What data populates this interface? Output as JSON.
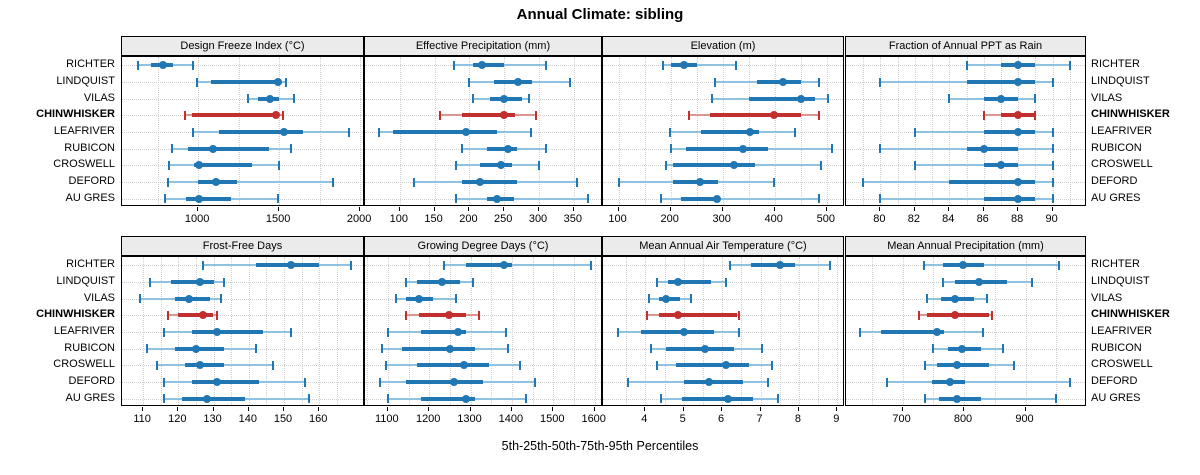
{
  "title": "Annual Climate: sibling",
  "caption": "5th-25th-50th-75th-95th Percentiles",
  "stations": [
    "RICHTER",
    "LINDQUIST",
    "VILAS",
    "CHINWHISKER",
    "LEAFRIVER",
    "RUBICON",
    "CROSWELL",
    "DEFORD",
    "AU GRES"
  ],
  "highlight_station": "CHINWHISKER",
  "colors": {
    "bar_blue": "#2077b4",
    "bar_blue_light": "#8fc2e0",
    "bar_red": "#c22f2f",
    "bar_red_light": "#dd9590",
    "strip_bg": "#ebebeb",
    "panel_border": "#000000",
    "grid": "#cfcfcf"
  },
  "chart_data": {
    "type": "dotplot-percentiles",
    "percentile_labels": [
      "5th",
      "25th",
      "50th",
      "75th",
      "95th"
    ],
    "legend_note": "values per station are [5th, 25th, 50th, 75th, 95th] percentiles",
    "panels": [
      {
        "title": "Design Freeze Index (°C)",
        "row": 0,
        "col": 0,
        "xlim": [
          530,
          2030
        ],
        "ticks": [
          1000,
          1500,
          2000
        ],
        "grid": [
          750,
          1000,
          1250,
          1500,
          1750,
          2000
        ],
        "values": [
          [
            630,
            710,
            780,
            845,
            965
          ],
          [
            990,
            1080,
            1490,
            1510,
            1545
          ],
          [
            1305,
            1370,
            1445,
            1500,
            1590
          ],
          [
            920,
            960,
            1480,
            1500,
            1525
          ],
          [
            970,
            1130,
            1530,
            1645,
            1930
          ],
          [
            840,
            935,
            1090,
            1440,
            1570
          ],
          [
            820,
            975,
            1005,
            1335,
            1500
          ],
          [
            815,
            1000,
            1110,
            1240,
            1830
          ],
          [
            795,
            925,
            1005,
            1200,
            1495
          ]
        ]
      },
      {
        "title": "Effective Precipitation (mm)",
        "row": 0,
        "col": 1,
        "xlim": [
          50,
          392
        ],
        "ticks": [
          100,
          150,
          200,
          250,
          300,
          350
        ],
        "grid": [
          100,
          150,
          200,
          250,
          300,
          350
        ],
        "values": [
          [
            178,
            205,
            218,
            250,
            310
          ],
          [
            200,
            235,
            270,
            290,
            345
          ],
          [
            205,
            230,
            250,
            275,
            285
          ],
          [
            158,
            190,
            250,
            265,
            295
          ],
          [
            70,
            90,
            195,
            240,
            288
          ],
          [
            190,
            225,
            255,
            268,
            310
          ],
          [
            180,
            215,
            245,
            262,
            300
          ],
          [
            120,
            190,
            215,
            268,
            355
          ],
          [
            180,
            225,
            240,
            264,
            370
          ]
        ]
      },
      {
        "title": "Elevation (m)",
        "row": 0,
        "col": 2,
        "xlim": [
          70,
          535
        ],
        "ticks": [
          100,
          200,
          300,
          400,
          500
        ],
        "grid": [
          100,
          150,
          200,
          250,
          300,
          350,
          400,
          450,
          500
        ],
        "values": [
          [
            185,
            200,
            225,
            250,
            325
          ],
          [
            285,
            365,
            415,
            450,
            485
          ],
          [
            280,
            350,
            450,
            477,
            503
          ],
          [
            235,
            275,
            398,
            450,
            485
          ],
          [
            198,
            258,
            353,
            370,
            438
          ],
          [
            200,
            230,
            338,
            388,
            510
          ],
          [
            190,
            205,
            322,
            362,
            488
          ],
          [
            100,
            204,
            256,
            291,
            399
          ],
          [
            182,
            220,
            288,
            295,
            484
          ]
        ]
      },
      {
        "title": "Fraction of Annual PPT as Rain",
        "row": 0,
        "col": 3,
        "xlim": [
          78,
          92
        ],
        "ticks": [
          80,
          82,
          84,
          86,
          88,
          90
        ],
        "grid": [
          79,
          80,
          81,
          82,
          83,
          84,
          85,
          86,
          87,
          88,
          89,
          90,
          91
        ],
        "values": [
          [
            85,
            87,
            88,
            89,
            91
          ],
          [
            80,
            85,
            88,
            89,
            90
          ],
          [
            84,
            86,
            87,
            88,
            89
          ],
          [
            86,
            87,
            88,
            89,
            89
          ],
          [
            82,
            86,
            88,
            89,
            90
          ],
          [
            80,
            85,
            86,
            88,
            90
          ],
          [
            82,
            86,
            87,
            88,
            90
          ],
          [
            79,
            84,
            88,
            89,
            90
          ],
          [
            80,
            86,
            88,
            89,
            90
          ]
        ]
      },
      {
        "title": "Frost-Free Days",
        "row": 1,
        "col": 0,
        "xlim": [
          104,
          173
        ],
        "ticks": [
          110,
          120,
          130,
          140,
          150,
          160
        ],
        "grid": [
          110,
          115,
          120,
          125,
          130,
          135,
          140,
          145,
          150,
          155,
          160,
          165
        ],
        "values": [
          [
            127,
            142,
            152,
            160,
            169
          ],
          [
            112,
            118,
            126,
            130,
            133
          ],
          [
            109,
            119,
            123,
            129,
            132
          ],
          [
            117,
            120,
            127,
            130,
            131
          ],
          [
            116,
            124,
            131,
            144,
            152
          ],
          [
            111,
            119,
            125,
            133,
            142
          ],
          [
            114,
            122,
            126,
            133,
            147
          ],
          [
            116,
            124,
            131,
            143,
            156
          ],
          [
            116,
            121,
            128,
            139,
            157
          ]
        ]
      },
      {
        "title": "Growing Degree Days (°C)",
        "row": 1,
        "col": 1,
        "xlim": [
          1045,
          1620
        ],
        "ticks": [
          1100,
          1200,
          1300,
          1400,
          1500,
          1600
        ],
        "grid": [
          1050,
          1100,
          1150,
          1200,
          1250,
          1300,
          1350,
          1400,
          1450,
          1500,
          1550,
          1600
        ],
        "values": [
          [
            1235,
            1290,
            1380,
            1400,
            1590
          ],
          [
            1145,
            1170,
            1230,
            1275,
            1305
          ],
          [
            1120,
            1145,
            1175,
            1210,
            1265
          ],
          [
            1143,
            1175,
            1247,
            1290,
            1320
          ],
          [
            1100,
            1180,
            1270,
            1290,
            1385
          ],
          [
            1085,
            1135,
            1250,
            1310,
            1390
          ],
          [
            1095,
            1170,
            1285,
            1345,
            1420
          ],
          [
            1080,
            1145,
            1260,
            1330,
            1455
          ],
          [
            1100,
            1180,
            1290,
            1310,
            1435
          ]
        ]
      },
      {
        "title": "Mean Annual Air Temperature (°C)",
        "row": 1,
        "col": 2,
        "xlim": [
          2.9,
          9.2
        ],
        "ticks": [
          4,
          5,
          6,
          7,
          8,
          9
        ],
        "grid": [
          3.5,
          4,
          4.5,
          5,
          5.5,
          6,
          6.5,
          7,
          7.5,
          8,
          8.5,
          9
        ],
        "values": [
          [
            6.2,
            6.75,
            7.5,
            7.9,
            8.8
          ],
          [
            4.3,
            4.6,
            4.85,
            5.7,
            6.1
          ],
          [
            4.1,
            4.35,
            4.55,
            4.9,
            5.2
          ],
          [
            4.05,
            4.35,
            4.85,
            6.4,
            6.45
          ],
          [
            3.3,
            3.9,
            5.0,
            5.8,
            6.45
          ],
          [
            4.15,
            4.55,
            5.55,
            6.3,
            7.05
          ],
          [
            4.3,
            4.8,
            6.1,
            6.7,
            7.3
          ],
          [
            3.55,
            5.0,
            5.65,
            6.55,
            7.2
          ],
          [
            4.4,
            4.95,
            6.15,
            6.8,
            7.45
          ]
        ]
      },
      {
        "title": "Mean Annual Precipitation (mm)",
        "row": 1,
        "col": 3,
        "xlim": [
          608,
          1000
        ],
        "ticks": [
          700,
          800,
          900
        ],
        "grid": [
          650,
          700,
          750,
          800,
          850,
          900,
          950
        ],
        "values": [
          [
            735,
            765,
            798,
            832,
            955
          ],
          [
            765,
            785,
            824,
            870,
            910
          ],
          [
            740,
            762,
            785,
            816,
            837
          ],
          [
            727,
            740,
            786,
            840,
            845
          ],
          [
            630,
            665,
            756,
            768,
            830
          ],
          [
            750,
            774,
            796,
            827,
            863
          ],
          [
            736,
            756,
            789,
            840,
            881
          ],
          [
            675,
            748,
            777,
            802,
            973
          ],
          [
            736,
            760,
            789,
            827,
            950
          ]
        ]
      }
    ]
  }
}
